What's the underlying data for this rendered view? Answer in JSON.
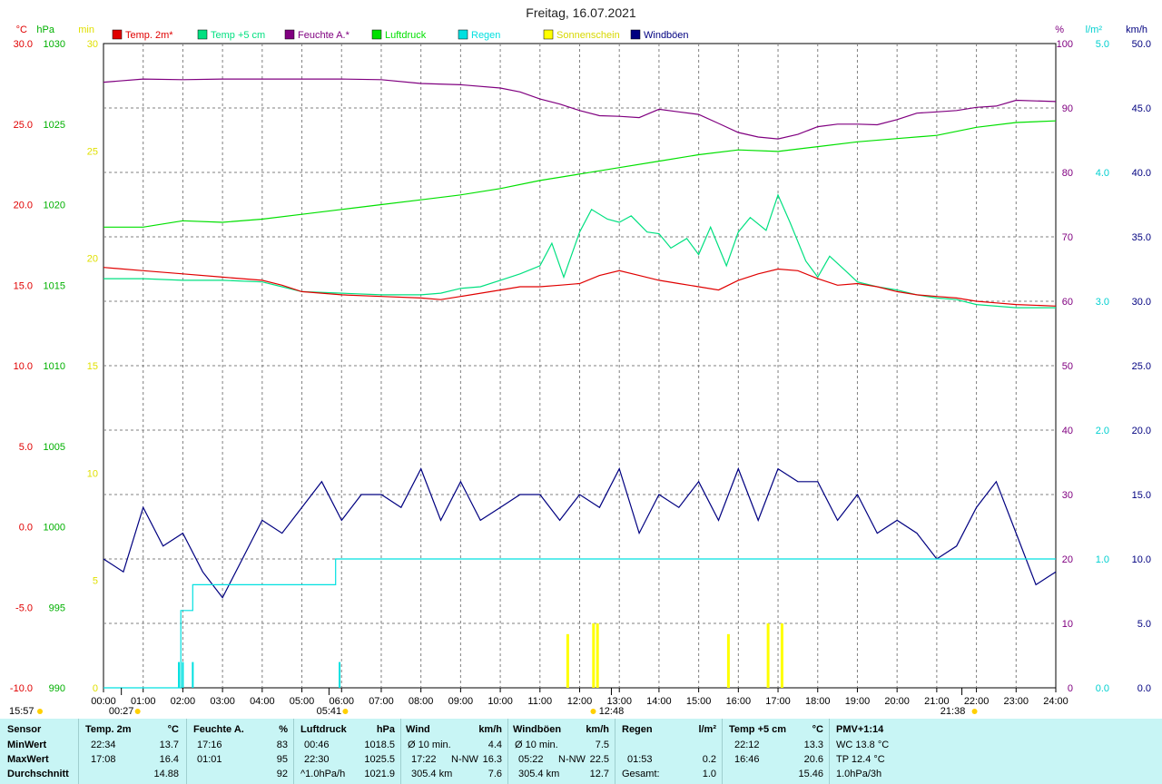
{
  "title": "Freitag, 16.07.2021",
  "colors": {
    "temp2m": "#e00000",
    "temp5cm": "#00e080",
    "feuchte": "#800080",
    "luftdruck": "#00e000",
    "regen": "#00e0e0",
    "sonne": "#ffff00",
    "wind": "#000080",
    "grid": "#808080"
  },
  "legend": [
    {
      "label": "Temp. 2m*",
      "color": "#e00000"
    },
    {
      "label": "Temp +5 cm",
      "color": "#00e080"
    },
    {
      "label": "Feuchte A.*",
      "color": "#800080"
    },
    {
      "label": "Luftdruck",
      "color": "#00e000"
    },
    {
      "label": "Regen",
      "color": "#00e0e0"
    },
    {
      "label": "Sonnenschein",
      "color": "#ffff00"
    },
    {
      "label": "Windböen",
      "color": "#000080"
    }
  ],
  "axes": {
    "temp": {
      "unit": "°C",
      "ticks": [
        "30.0",
        "25.0",
        "20.0",
        "15.0",
        "10.0",
        "5.0",
        "0.0",
        "-5.0",
        "-10.0"
      ],
      "range": [
        -10,
        30
      ]
    },
    "hpa": {
      "unit": "hPa",
      "ticks": [
        "1030",
        "1025",
        "1020",
        "1015",
        "1010",
        "1005",
        "1000",
        "995",
        "990"
      ],
      "range": [
        990,
        1030
      ]
    },
    "min": {
      "unit": "min",
      "ticks": [
        "30",
        "25",
        "20",
        "15",
        "10",
        "5",
        "0"
      ],
      "range": [
        0,
        30
      ]
    },
    "pct": {
      "unit": "%",
      "ticks": [
        "100",
        "90",
        "80",
        "70",
        "60",
        "50",
        "40",
        "30",
        "20",
        "10",
        "0"
      ],
      "range": [
        0,
        100
      ]
    },
    "rain": {
      "unit": "l/m²",
      "ticks": [
        "5.0",
        "4.0",
        "3.0",
        "2.0",
        "1.0",
        "0.0"
      ],
      "range": [
        0,
        5
      ]
    },
    "wind": {
      "unit": "km/h",
      "ticks": [
        "50.0",
        "45.0",
        "40.0",
        "35.0",
        "30.0",
        "25.0",
        "20.0",
        "15.0",
        "10.0",
        "5.0",
        "0.0"
      ],
      "range": [
        0,
        50
      ]
    },
    "x_ticks": [
      "00:00",
      "01:00",
      "02:00",
      "03:00",
      "04:00",
      "05:00",
      "06:00",
      "07:00",
      "08:00",
      "09:00",
      "10:00",
      "11:00",
      "12:00",
      "13:00",
      "14:00",
      "15:00",
      "16:00",
      "17:00",
      "18:00",
      "19:00",
      "20:00",
      "21:00",
      "22:00",
      "23:00",
      "24:00"
    ]
  },
  "time_markers": {
    "sunrise": "05:41",
    "noon": "12:48",
    "sunset": "21:38",
    "moonrise": "15:57",
    "moonset": "00:27"
  },
  "chart_data": {
    "type": "line",
    "x_unit": "hours",
    "grid": true,
    "series": [
      {
        "name": "Temp. 2m*",
        "axis": "temp",
        "x": [
          0,
          1,
          2,
          3,
          4,
          4.5,
          5,
          6,
          7,
          8,
          8.5,
          9,
          10,
          10.5,
          11,
          11.5,
          12,
          12.5,
          13,
          13.5,
          14,
          14.5,
          15,
          15.5,
          16,
          16.5,
          17,
          17.5,
          18,
          18.5,
          19,
          19.5,
          20,
          20.5,
          21,
          21.5,
          22,
          22.5,
          23,
          24
        ],
        "y": [
          16.1,
          15.9,
          15.7,
          15.5,
          15.3,
          15.0,
          14.6,
          14.4,
          14.3,
          14.2,
          14.1,
          14.3,
          14.7,
          14.9,
          14.9,
          15.0,
          15.1,
          15.6,
          15.9,
          15.6,
          15.3,
          15.1,
          14.9,
          14.7,
          15.3,
          15.7,
          16.0,
          15.9,
          15.4,
          15.0,
          15.1,
          14.9,
          14.6,
          14.4,
          14.3,
          14.2,
          14.0,
          13.9,
          13.8,
          13.7
        ]
      },
      {
        "name": "Temp +5 cm",
        "axis": "temp",
        "x": [
          0,
          1,
          2,
          3,
          4,
          4.5,
          5,
          6,
          7,
          8,
          8.5,
          9,
          9.5,
          10,
          10.5,
          11,
          11.3,
          11.6,
          12,
          12.3,
          12.7,
          13,
          13.3,
          13.7,
          14,
          14.3,
          14.7,
          15,
          15.3,
          15.7,
          16,
          16.3,
          16.7,
          17,
          17.3,
          17.7,
          18,
          18.3,
          18.7,
          19,
          19.5,
          20,
          20.5,
          21,
          21.5,
          22,
          23,
          24
        ],
        "y": [
          15.4,
          15.4,
          15.3,
          15.3,
          15.2,
          14.9,
          14.6,
          14.5,
          14.4,
          14.4,
          14.5,
          14.8,
          14.9,
          15.3,
          15.7,
          16.2,
          17.6,
          15.5,
          18.3,
          19.7,
          19.1,
          18.9,
          19.3,
          18.3,
          18.2,
          17.3,
          17.9,
          16.9,
          18.6,
          16.2,
          18.3,
          19.2,
          18.4,
          20.6,
          18.9,
          16.5,
          15.5,
          16.8,
          15.9,
          15.2,
          14.9,
          14.7,
          14.4,
          14.2,
          14.1,
          13.8,
          13.6,
          13.6
        ]
      },
      {
        "name": "Feuchte A.*",
        "axis": "pct",
        "x": [
          0,
          1,
          2,
          3,
          4,
          5,
          6,
          7,
          8,
          9,
          10,
          10.5,
          11,
          11.5,
          12,
          12.5,
          13,
          13.5,
          14,
          14.5,
          15,
          15.5,
          16,
          16.5,
          17,
          17.5,
          18,
          18.5,
          19,
          19.5,
          20,
          20.5,
          21,
          21.5,
          22,
          22.5,
          23,
          24
        ],
        "y": [
          94.0,
          94.5,
          94.4,
          94.5,
          94.5,
          94.5,
          94.5,
          94.4,
          93.8,
          93.6,
          93.1,
          92.5,
          91.4,
          90.6,
          89.6,
          88.8,
          88.7,
          88.5,
          89.8,
          89.4,
          89.0,
          87.6,
          86.2,
          85.5,
          85.2,
          85.9,
          87.1,
          87.5,
          87.5,
          87.4,
          88.2,
          89.2,
          89.4,
          89.6,
          90.1,
          90.3,
          91.2,
          91.0
        ]
      },
      {
        "name": "Luftdruck",
        "axis": "hpa",
        "x": [
          0,
          1,
          2,
          3,
          4,
          5,
          6,
          7,
          8,
          9,
          10,
          11,
          12,
          13,
          14,
          15,
          16,
          17,
          18,
          19,
          20,
          21,
          22,
          23,
          24
        ],
        "y": [
          1018.6,
          1018.6,
          1019.0,
          1018.9,
          1019.1,
          1019.4,
          1019.7,
          1020.0,
          1020.3,
          1020.6,
          1021.0,
          1021.5,
          1021.9,
          1022.3,
          1022.7,
          1023.1,
          1023.4,
          1023.3,
          1023.6,
          1023.9,
          1024.1,
          1024.3,
          1024.8,
          1025.1,
          1025.2
        ]
      },
      {
        "name": "Regen",
        "axis": "rain",
        "type": "step",
        "x": [
          0,
          1.85,
          1.95,
          2.25,
          3,
          4,
          5,
          5.75,
          5.85,
          6,
          12,
          18,
          24
        ],
        "y": [
          0,
          0,
          0.6,
          0.8,
          0.8,
          0.8,
          0.8,
          0.8,
          1.0,
          1.0,
          1.0,
          1.0,
          1.0
        ]
      },
      {
        "name": "Windböen",
        "axis": "wind",
        "x": [
          0,
          0.5,
          1,
          1.5,
          2,
          2.5,
          3,
          3.5,
          4,
          4.5,
          5,
          5.5,
          6,
          6.5,
          7,
          7.5,
          8,
          8.5,
          9,
          9.5,
          10,
          10.5,
          11,
          11.5,
          12,
          12.5,
          13,
          13.5,
          14,
          14.5,
          15,
          15.5,
          16,
          16.5,
          17,
          17.5,
          18,
          18.5,
          19,
          19.5,
          20,
          20.5,
          21,
          21.5,
          22,
          22.5,
          23,
          23.5,
          24
        ],
        "y": [
          10,
          9,
          14,
          11,
          12,
          9,
          7,
          10,
          13,
          12,
          14,
          16,
          13,
          15,
          15,
          14,
          17,
          13,
          16,
          13,
          14,
          15,
          15,
          13,
          15,
          14,
          17,
          12,
          15,
          14,
          16,
          13,
          17,
          13,
          17,
          16,
          16,
          13,
          15,
          12,
          13,
          12,
          10,
          11,
          14,
          16,
          12,
          8,
          9
        ]
      }
    ],
    "sunshine_bars": {
      "axis": "min",
      "x": [
        11.7,
        12.35,
        12.45,
        15.75,
        16.75,
        17.1
      ],
      "y": [
        2.5,
        3.0,
        3.0,
        2.5,
        3.0,
        3.0
      ]
    }
  },
  "summary": {
    "headers": {
      "sensor": "Sensor",
      "temp": "Temp. 2m",
      "temp_unit": "°C",
      "feuchte": "Feuchte A.",
      "feuchte_unit": "%",
      "luft": "Luftdruck",
      "luft_unit": "hPa",
      "wind": "Wind",
      "wind_unit": "km/h",
      "boeen": "Windböen",
      "boeen_unit": "km/h",
      "regen": "Regen",
      "regen_unit": "l/m²",
      "t5": "Temp +5 cm",
      "t5_unit": "°C",
      "pmv": "PMV+1:14"
    },
    "rows": {
      "min": "MinWert",
      "max": "MaxWert",
      "avg": "Durchschnitt"
    },
    "temp": {
      "min_time": "22:34",
      "min": "13.7",
      "max_time": "17:08",
      "max": "16.4",
      "avg": "14.88"
    },
    "feuchte": {
      "min_time": "17:16",
      "min": "83",
      "max_time": "01:01",
      "max": "95",
      "avg": "92"
    },
    "luft": {
      "min_time": "00:46",
      "min": "1018.5",
      "max_time": "22:30",
      "max": "1025.5",
      "trend_label": "^1.0hPa/h",
      "avg": "1021.9"
    },
    "wind": {
      "avg10_label": "Ø 10 min.",
      "avg10": "4.4",
      "max_time": "17:22",
      "max_dir": "N-NW",
      "max": "16.3",
      "dist": "305.4 km",
      "avg": "7.6"
    },
    "boeen": {
      "avg10_label": "Ø 10 min.",
      "avg10": "7.5",
      "max_time": "05:22",
      "max_dir": "N-NW",
      "max": "22.5",
      "dist": "305.4 km",
      "avg": "12.7"
    },
    "regen": {
      "max_time": "01:53",
      "max": "0.2",
      "total_label": "Gesamt:",
      "total": "1.0"
    },
    "t5": {
      "min_time": "22:12",
      "min": "13.3",
      "max_time": "16:46",
      "max": "20.6",
      "avg": "15.46"
    },
    "pmv": {
      "wc": "WC 13.8 °C",
      "tp": "TP 12.4 °C",
      "trend": "1.0hPa/3h"
    }
  }
}
